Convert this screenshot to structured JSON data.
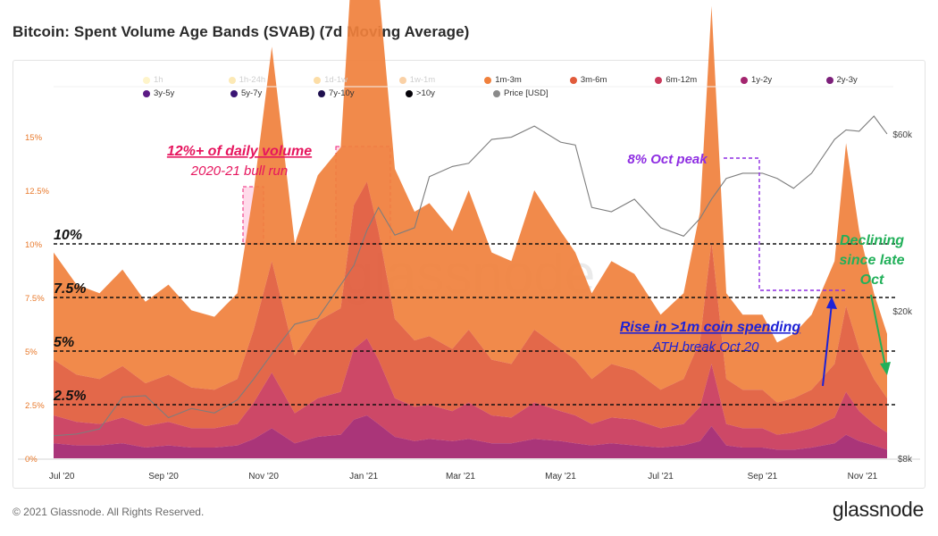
{
  "page": {
    "title": "Bitcoin: Spent Volume Age Bands (SVAB) (7d Moving Average)",
    "copyright": "© 2021 Glassnode. All Rights Reserved.",
    "logo": "glassnode",
    "watermark": "glassnode"
  },
  "legend": {
    "items": [
      {
        "label": "1h",
        "color": "#fde68a",
        "faded": true
      },
      {
        "label": "1h-24h",
        "color": "#f8cf5a",
        "faded": true
      },
      {
        "label": "1d-1w",
        "color": "#f8b43a",
        "faded": true
      },
      {
        "label": "1w-1m",
        "color": "#f59a3a",
        "faded": true
      },
      {
        "label": "1m-3m",
        "color": "#f0803c",
        "faded": false
      },
      {
        "label": "3m-6m",
        "color": "#e15b3b",
        "faded": false
      },
      {
        "label": "6m-12m",
        "color": "#c9385a",
        "faded": false
      },
      {
        "label": "1y-2y",
        "color": "#a3246e",
        "faded": false
      },
      {
        "label": "2y-3y",
        "color": "#7c1f7a",
        "faded": false
      },
      {
        "label": "3y-5y",
        "color": "#5b1a84",
        "faded": false
      },
      {
        "label": "5y-7y",
        "color": "#3a1474",
        "faded": false
      },
      {
        "label": "7y-10y",
        "color": "#1e0f4e",
        "faded": false
      },
      {
        "label": ">10y",
        "color": "#050208",
        "faded": false
      },
      {
        "label": "Price [USD]",
        "color": "#8a8a8a",
        "faded": false
      }
    ]
  },
  "chart_data": {
    "type": "area",
    "title": "Bitcoin: Spent Volume Age Bands (SVAB) (7d Moving Average)",
    "x": [
      "2020-06-26",
      "2020-07-10",
      "2020-07-24",
      "2020-08-07",
      "2020-08-21",
      "2020-09-04",
      "2020-09-18",
      "2020-10-02",
      "2020-10-16",
      "2020-10-26",
      "2020-11-06",
      "2020-11-20",
      "2020-12-04",
      "2020-12-18",
      "2020-12-26",
      "2021-01-03",
      "2021-01-10",
      "2021-01-20",
      "2021-02-01",
      "2021-02-10",
      "2021-02-24",
      "2021-03-06",
      "2021-03-20",
      "2021-04-01",
      "2021-04-15",
      "2021-05-01",
      "2021-05-10",
      "2021-05-20",
      "2021-06-01",
      "2021-06-15",
      "2021-07-01",
      "2021-07-15",
      "2021-07-25",
      "2021-08-01",
      "2021-08-10",
      "2021-08-20",
      "2021-09-01",
      "2021-09-10",
      "2021-09-20",
      "2021-10-01",
      "2021-10-15",
      "2021-10-22",
      "2021-10-30",
      "2021-11-08",
      "2021-11-16"
    ],
    "x_ticks": [
      "Jul '20",
      "Sep '20",
      "Nov '20",
      "Jan '21",
      "Mar '21",
      "May '21",
      "Jul '21",
      "Sep '21",
      "Nov '21"
    ],
    "y_left": {
      "unit": "%",
      "ticks": [
        "0%",
        "2.5%",
        "5%",
        "7.5%",
        "10%",
        "12.5%",
        "15%"
      ],
      "range": [
        0,
        16
      ]
    },
    "y_right": {
      "scale": "log",
      "ticks": [
        "$8k",
        "$20k",
        "$60k"
      ],
      "range": [
        8000,
        70000
      ]
    },
    "series": [
      {
        "name": "1m-3m",
        "values": [
          5.0,
          4.2,
          4.0,
          4.5,
          3.8,
          4.2,
          3.6,
          3.4,
          4.0,
          6.5,
          10.0,
          5.2,
          6.8,
          7.5,
          12.8,
          14.0,
          11.5,
          7.0,
          6.0,
          6.2,
          5.5,
          6.5,
          5.0,
          4.8,
          6.5,
          5.5,
          5.0,
          4.0,
          4.8,
          4.5,
          3.5,
          4.0,
          6.0,
          11.0,
          4.0,
          3.5,
          3.5,
          2.8,
          3.0,
          3.5,
          4.8,
          7.6,
          5.5,
          4.0,
          3.0
        ]
      },
      {
        "name": "3m-6m",
        "values": [
          2.6,
          2.2,
          2.1,
          2.4,
          2.0,
          2.2,
          1.9,
          1.8,
          2.1,
          3.4,
          5.2,
          2.7,
          3.6,
          3.9,
          6.7,
          7.3,
          6.0,
          3.7,
          3.1,
          3.2,
          2.9,
          3.4,
          2.6,
          2.5,
          3.4,
          2.9,
          2.6,
          2.1,
          2.5,
          2.3,
          1.8,
          2.1,
          3.1,
          5.7,
          2.1,
          1.8,
          1.8,
          1.5,
          1.6,
          1.8,
          2.5,
          4.0,
          2.9,
          2.1,
          1.6
        ]
      },
      {
        "name": "6m-12m",
        "values": [
          1.3,
          1.1,
          1.0,
          1.2,
          1.0,
          1.1,
          0.9,
          0.9,
          1.0,
          1.7,
          2.6,
          1.4,
          1.8,
          2.0,
          3.3,
          3.6,
          3.0,
          1.8,
          1.6,
          1.6,
          1.4,
          1.7,
          1.3,
          1.2,
          1.7,
          1.4,
          1.3,
          1.0,
          1.2,
          1.2,
          0.9,
          1.0,
          1.6,
          2.9,
          1.0,
          0.9,
          0.9,
          0.7,
          0.8,
          0.9,
          1.2,
          2.0,
          1.4,
          1.0,
          0.8
        ]
      },
      {
        "name": "1y-2y",
        "values": [
          0.7,
          0.6,
          0.6,
          0.7,
          0.5,
          0.6,
          0.5,
          0.5,
          0.6,
          0.9,
          1.4,
          0.7,
          1.0,
          1.1,
          1.8,
          2.0,
          1.6,
          1.0,
          0.8,
          0.9,
          0.8,
          0.9,
          0.7,
          0.7,
          0.9,
          0.8,
          0.7,
          0.6,
          0.7,
          0.6,
          0.5,
          0.6,
          0.8,
          1.5,
          0.6,
          0.5,
          0.5,
          0.4,
          0.4,
          0.5,
          0.7,
          1.1,
          0.8,
          0.6,
          0.4
        ]
      },
      {
        "name": "Price [USD]",
        "values": [
          9200,
          9300,
          9600,
          11700,
          11800,
          10300,
          10900,
          10600,
          11500,
          13100,
          15300,
          18400,
          19100,
          23500,
          26500,
          33000,
          38000,
          32000,
          33500,
          46000,
          49000,
          50000,
          58000,
          58800,
          63000,
          57000,
          56000,
          38000,
          37000,
          40000,
          33500,
          31800,
          35500,
          40000,
          45500,
          47000,
          47000,
          45500,
          42800,
          47000,
          58000,
          61500,
          61000,
          67000,
          60000
        ]
      }
    ],
    "reference_lines": [
      {
        "label": "10%",
        "value": 10
      },
      {
        "label": "7.5%",
        "value": 7.5
      },
      {
        "label": "5%",
        "value": 5
      },
      {
        "label": "2.5%",
        "value": 2.5
      }
    ]
  },
  "annotations": {
    "volume_title": "12%+ of daily volume",
    "volume_sub": "2020-21 bull run",
    "oct_peak": "8% Oct peak",
    "rise_title": "Rise in >1m coin spending",
    "rise_sub": "ATH break Oct 20",
    "declining_l1": "Declining",
    "declining_l2": "since late",
    "declining_l3": "Oct"
  }
}
